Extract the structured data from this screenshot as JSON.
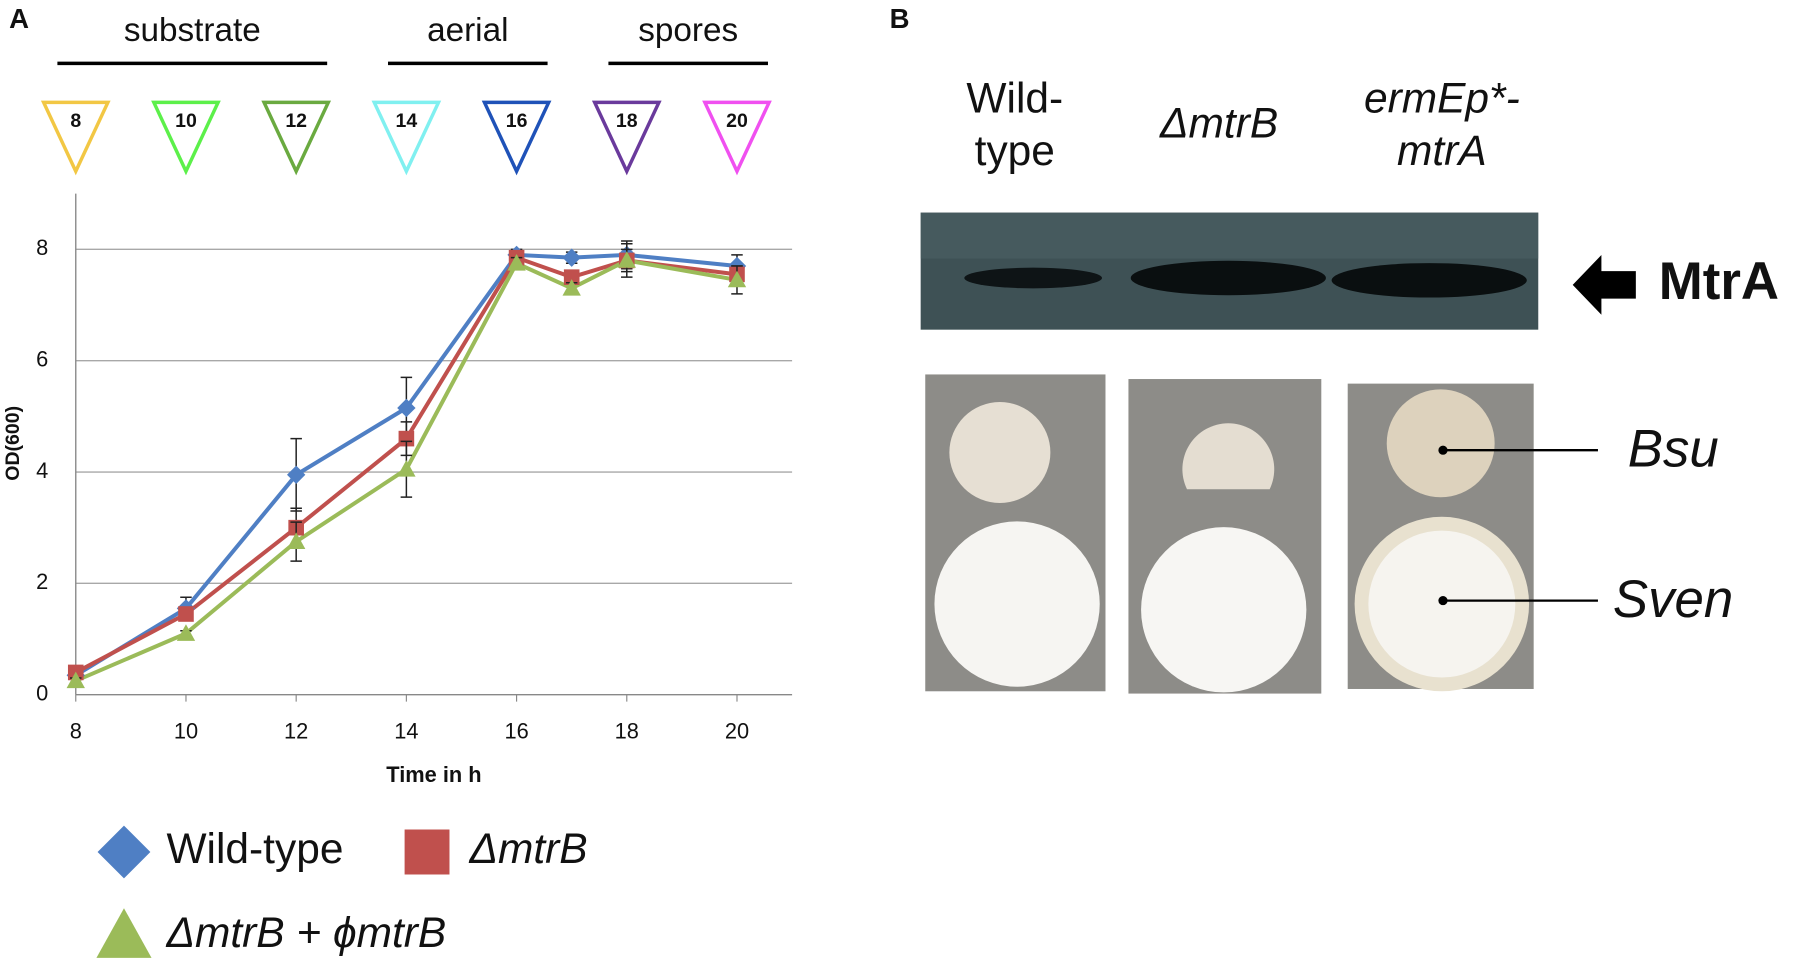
{
  "panel_labels": [
    "A",
    "B"
  ],
  "chart_data": {
    "type": "line",
    "x_label": "Time in h",
    "y_label": "OD(600)",
    "x": [
      8,
      10,
      12,
      14,
      16,
      17,
      18,
      20
    ],
    "xlim": [
      8,
      21
    ],
    "xticks": [
      8,
      10,
      12,
      14,
      16,
      18,
      20
    ],
    "ylim": [
      0,
      9
    ],
    "yticks": [
      0,
      2,
      4,
      6,
      8
    ],
    "grid": true,
    "series": [
      {
        "name": "Wild-type",
        "color": "#4f7fc4",
        "marker": "diamond",
        "italic": false,
        "values": [
          0.35,
          1.55,
          3.95,
          5.15,
          7.9,
          7.85,
          7.9,
          7.7
        ],
        "errors": [
          0.05,
          0.2,
          0.65,
          0.55,
          0.1,
          0.1,
          0.25,
          0.2
        ]
      },
      {
        "name": "ΔmtrB",
        "color": "#c0504d",
        "marker": "square",
        "italic": true,
        "values": [
          0.4,
          1.45,
          3.0,
          4.6,
          7.85,
          7.5,
          7.8,
          7.55
        ],
        "errors": [
          0.05,
          0.1,
          0.35,
          0.3,
          0.1,
          0.1,
          0.2,
          0.15
        ]
      },
      {
        "name": "ΔmtrB + ϕmtrB",
        "color": "#9bbb59",
        "marker": "triangle",
        "italic": true,
        "values": [
          0.25,
          1.1,
          2.75,
          4.05,
          7.75,
          7.3,
          7.8,
          7.45
        ],
        "errors": [
          0.05,
          0.05,
          0.35,
          0.5,
          0.1,
          0.1,
          0.3,
          0.25
        ]
      }
    ],
    "phases": [
      {
        "label": "substrate",
        "from": 8,
        "to": 12
      },
      {
        "label": "aerial",
        "from": 14,
        "to": 16
      },
      {
        "label": "spores",
        "from": 18,
        "to": 20
      }
    ],
    "stages": [
      {
        "value": 8,
        "color": "#f2c744"
      },
      {
        "value": 10,
        "color": "#5cf04a"
      },
      {
        "value": 12,
        "color": "#6aaa40"
      },
      {
        "value": 14,
        "color": "#80f0f0"
      },
      {
        "value": 16,
        "color": "#1f52b8"
      },
      {
        "value": 18,
        "color": "#6a3a9c"
      },
      {
        "value": 20,
        "color": "#f050f0"
      }
    ]
  },
  "panel_b": {
    "columns": [
      [
        "Wild-",
        "type"
      ],
      [
        "ΔmtrB"
      ],
      [
        "ermEp*-",
        "mtrA"
      ]
    ],
    "blot_label": "MtrA",
    "plate_labels": [
      "Bsu",
      "Sven"
    ]
  }
}
